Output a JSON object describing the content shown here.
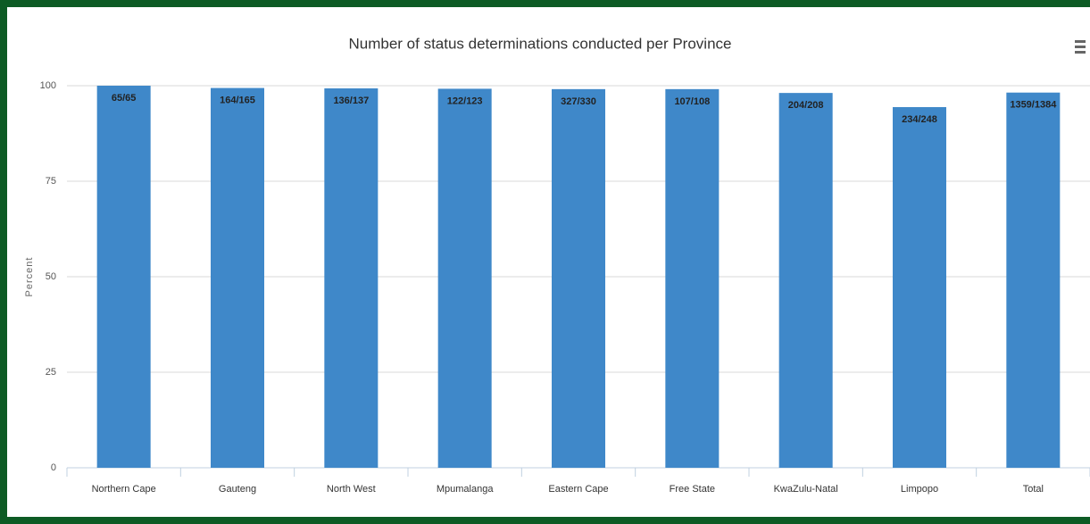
{
  "chart_data": {
    "type": "bar",
    "title": "Number of status determinations conducted per Province",
    "y_label": "Percent",
    "categories": [
      "Northern Cape",
      "Gauteng",
      "North West",
      "Mpumalanga",
      "Eastern Cape",
      "Free State",
      "KwaZulu-Natal",
      "Limpopo",
      "Total"
    ],
    "values": [
      100,
      99.4,
      99.3,
      99.2,
      99.1,
      99.1,
      98.1,
      94.4,
      98.2
    ],
    "value_labels": [
      "65/65",
      "164/165",
      "136/137",
      "122/123",
      "327/330",
      "107/108",
      "204/208",
      "234/248",
      "1359/1384"
    ],
    "color": "#3f88c9",
    "ylim": [
      0,
      100
    ],
    "yticks": [
      0,
      25,
      50,
      75,
      100
    ],
    "grid": true
  }
}
